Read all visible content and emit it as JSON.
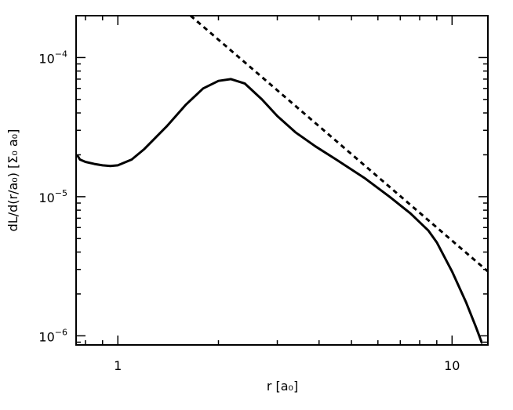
{
  "chart_data": {
    "type": "line",
    "title": "",
    "xlabel": "r [a₀]",
    "ylabel": "dL/d(r/a₀) [Σ₀ a₀]",
    "x_scale": "log",
    "y_scale": "log",
    "xlim": [
      0.75,
      12.8
    ],
    "ylim": [
      8.6e-07,
      0.0002
    ],
    "grid": false,
    "legend": "none",
    "x_ticks": [
      {
        "value": 1,
        "label": "1"
      },
      {
        "value": 10,
        "label": "10"
      }
    ],
    "y_ticks": [
      {
        "value": 1e-06,
        "base": "10",
        "exp": "−6"
      },
      {
        "value": 1e-05,
        "base": "10",
        "exp": "−5"
      },
      {
        "value": 0.0001,
        "base": "10",
        "exp": "−4"
      }
    ],
    "series": [
      {
        "style": "solid",
        "color": "#000000",
        "x": [
          0.755,
          0.77,
          0.8,
          0.85,
          0.9,
          0.95,
          1.0,
          1.1,
          1.2,
          1.4,
          1.6,
          1.8,
          2.0,
          2.18,
          2.4,
          2.7,
          3.0,
          3.4,
          3.9,
          4.5,
          5.5,
          6.5,
          7.5,
          8.5,
          9.0,
          10.0,
          11.0,
          11.8,
          12.3
        ],
        "y": [
          2e-05,
          1.85e-05,
          1.78e-05,
          1.72e-05,
          1.68e-05,
          1.66e-05,
          1.68e-05,
          1.85e-05,
          2.2e-05,
          3.2e-05,
          4.6e-05,
          6e-05,
          6.8e-05,
          7e-05,
          6.5e-05,
          5e-05,
          3.8e-05,
          2.9e-05,
          2.3e-05,
          1.85e-05,
          1.35e-05,
          1e-05,
          7.6e-06,
          5.7e-06,
          4.7e-06,
          2.9e-06,
          1.75e-06,
          1.15e-06,
          8.8e-07
        ]
      },
      {
        "style": "dashed",
        "color": "#000000",
        "x": [
          1.65,
          12.8
        ],
        "y": [
          0.0002,
          2.9e-06
        ]
      }
    ]
  }
}
